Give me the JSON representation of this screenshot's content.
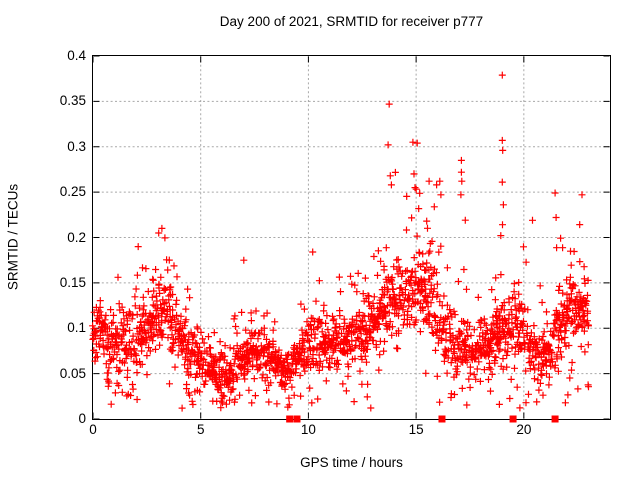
{
  "figure": {
    "background": "#ffffff"
  },
  "chart_data": {
    "type": "scatter",
    "title": "Day 200 of 2021, SRMTID for receiver p777",
    "xlabel": "GPS time / hours",
    "ylabel": "SRMTID / TECUs",
    "xlim": [
      0,
      24
    ],
    "ylim": [
      0,
      0.4
    ],
    "grid": true,
    "legend": "none",
    "xticks": {
      "values": [
        0,
        5,
        10,
        15,
        20
      ],
      "labels": [
        "0",
        "5",
        "10",
        "15",
        "20"
      ]
    },
    "yticks": {
      "values": [
        0,
        0.05,
        0.1,
        0.15,
        0.2,
        0.25,
        0.3,
        0.35,
        0.4
      ],
      "labels": [
        "0",
        "0.05",
        "0.1",
        "0.15",
        "0.2",
        "0.25",
        "0.3",
        "0.35",
        "0.4"
      ]
    },
    "colors": {
      "marker": "#ff0000",
      "grid": "#a8a8a8",
      "axis": "#000000",
      "text": "#000000"
    },
    "marker": "plus",
    "marker_size": 7,
    "series": [
      {
        "name": "srmtid-values",
        "style": "plus-cross",
        "description": "dense SRMTID scatter vs GPS time, generated from envelope_bins + outliers",
        "x_start": 0.0,
        "x_end": 23.0
      },
      {
        "name": "event-markers",
        "style": "filled-square",
        "points": [
          [
            9.13,
            0
          ],
          [
            9.47,
            0
          ],
          [
            16.2,
            0
          ],
          [
            19.5,
            0
          ],
          [
            21.45,
            0
          ]
        ]
      }
    ],
    "envelope_bins": {
      "start_hour": 0,
      "step_hours": 0.5,
      "columns": [
        "core_low",
        "core_high",
        "peak"
      ],
      "bins": [
        [
          0.06,
          0.13,
          0.15
        ],
        [
          0.04,
          0.12,
          0.16
        ],
        [
          0.04,
          0.12,
          0.18
        ],
        [
          0.03,
          0.13,
          0.18
        ],
        [
          0.05,
          0.14,
          0.19
        ],
        [
          0.06,
          0.16,
          0.2
        ],
        [
          0.08,
          0.17,
          0.21
        ],
        [
          0.06,
          0.15,
          0.17
        ],
        [
          0.04,
          0.13,
          0.16
        ],
        [
          0.03,
          0.11,
          0.15
        ],
        [
          0.03,
          0.1,
          0.16
        ],
        [
          0.02,
          0.08,
          0.13
        ],
        [
          0.02,
          0.08,
          0.14
        ],
        [
          0.03,
          0.09,
          0.12
        ],
        [
          0.04,
          0.11,
          0.17
        ],
        [
          0.04,
          0.1,
          0.14
        ],
        [
          0.04,
          0.1,
          0.13
        ],
        [
          0.03,
          0.08,
          0.12
        ],
        [
          0.03,
          0.09,
          0.12
        ],
        [
          0.04,
          0.11,
          0.15
        ],
        [
          0.05,
          0.12,
          0.18
        ],
        [
          0.05,
          0.11,
          0.14
        ],
        [
          0.05,
          0.12,
          0.16
        ],
        [
          0.05,
          0.12,
          0.17
        ],
        [
          0.06,
          0.13,
          0.16
        ],
        [
          0.06,
          0.14,
          0.18
        ],
        [
          0.07,
          0.16,
          0.22
        ],
        [
          0.08,
          0.19,
          0.3
        ],
        [
          0.08,
          0.18,
          0.26
        ],
        [
          0.08,
          0.19,
          0.28
        ],
        [
          0.09,
          0.2,
          0.29
        ],
        [
          0.08,
          0.19,
          0.26
        ],
        [
          0.05,
          0.15,
          0.24
        ],
        [
          0.04,
          0.11,
          0.16
        ],
        [
          0.05,
          0.12,
          0.24
        ],
        [
          0.04,
          0.11,
          0.15
        ],
        [
          0.05,
          0.12,
          0.18
        ],
        [
          0.05,
          0.13,
          0.22
        ],
        [
          0.06,
          0.14,
          0.24
        ],
        [
          0.06,
          0.15,
          0.22
        ],
        [
          0.05,
          0.13,
          0.21
        ],
        [
          0.03,
          0.1,
          0.15
        ],
        [
          0.04,
          0.12,
          0.2
        ],
        [
          0.06,
          0.15,
          0.22
        ],
        [
          0.08,
          0.17,
          0.21
        ],
        [
          0.08,
          0.16,
          0.22
        ]
      ]
    },
    "outliers": [
      [
        2.1,
        0.19
      ],
      [
        3.05,
        0.205
      ],
      [
        3.2,
        0.21
      ],
      [
        7.0,
        0.175
      ],
      [
        10.2,
        0.184
      ],
      [
        13.7,
        0.302
      ],
      [
        13.75,
        0.347
      ],
      [
        13.8,
        0.268
      ],
      [
        13.85,
        0.258
      ],
      [
        14.85,
        0.305
      ],
      [
        14.9,
        0.27
      ],
      [
        14.95,
        0.255
      ],
      [
        15.05,
        0.304
      ],
      [
        15.6,
        0.262
      ],
      [
        15.95,
        0.258
      ],
      [
        16.1,
        0.262
      ],
      [
        16.15,
        0.247
      ],
      [
        17.08,
        0.247
      ],
      [
        17.1,
        0.285
      ],
      [
        17.1,
        0.272
      ],
      [
        17.12,
        0.262
      ],
      [
        19.0,
        0.379
      ],
      [
        19.0,
        0.307
      ],
      [
        19.02,
        0.296
      ],
      [
        19.0,
        0.261
      ],
      [
        19.05,
        0.236
      ],
      [
        20.4,
        0.219
      ],
      [
        21.45,
        0.249
      ],
      [
        21.5,
        0.222
      ],
      [
        22.7,
        0.247
      ]
    ],
    "gen": {
      "seed": 7,
      "dt": 0.05,
      "kmin": 3,
      "kmax": 6,
      "outlier_prob": 0.055,
      "low_tail_prob": 0.05
    }
  }
}
